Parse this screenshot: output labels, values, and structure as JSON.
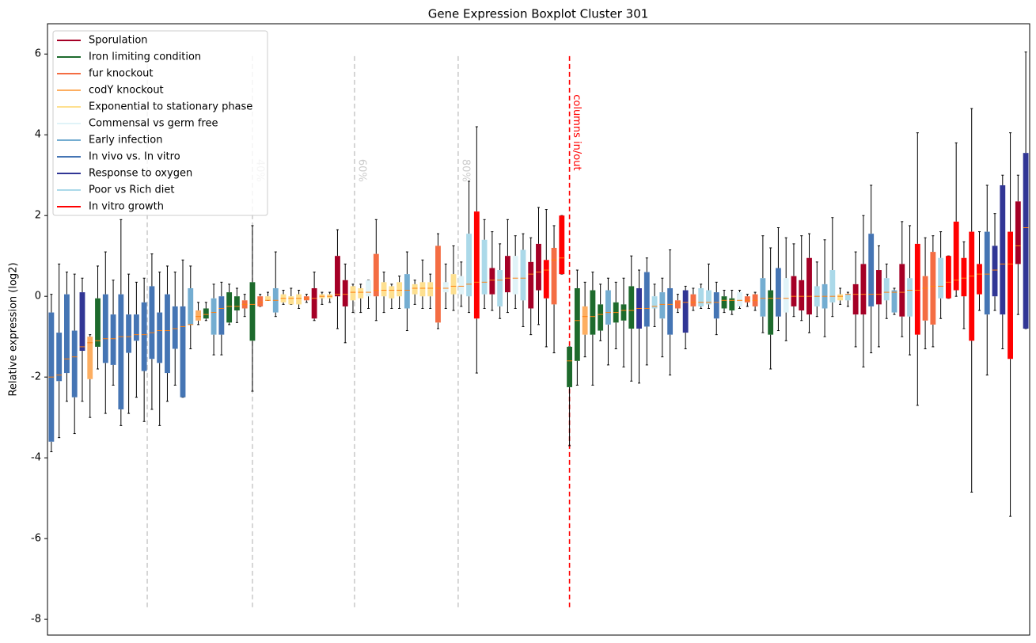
{
  "chart_data": {
    "type": "boxplot",
    "title": "Gene Expression Boxplot Cluster 301",
    "ylabel": "Relative expression (log2)",
    "xlim": [
      -0.5,
      126.5
    ],
    "ylim": [
      -8.39,
      6.75
    ],
    "yticks": [
      -8,
      -6,
      -4,
      -2,
      0,
      2,
      4,
      6
    ],
    "legend": "upper left",
    "median_color": "#ff7f0e",
    "whisker_color": "#000000",
    "vlines": [
      {
        "x": 12.4,
        "ymin": -7.7,
        "ymax": 6,
        "color": "#cccccc"
      },
      {
        "x": 26,
        "ymin": -7.7,
        "ymax": 6,
        "color": "#cccccc",
        "label": "40%"
      },
      {
        "x": 39.2,
        "ymin": -7.7,
        "ymax": 6,
        "color": "#cccccc",
        "label": "60%"
      },
      {
        "x": 52.6,
        "ymin": -7.7,
        "ymax": 6,
        "color": "#cccccc",
        "label": "80%"
      },
      {
        "x": 67,
        "ymin": -7.7,
        "ymax": 6,
        "color": "#ff0000",
        "label": "columns in/out"
      }
    ],
    "series": [
      {
        "name": "Sporulation",
        "color": "#a50026",
        "x": [
          34,
          37,
          38,
          57,
          59,
          62,
          63,
          96,
          97,
          98,
          104,
          105,
          107,
          110,
          125
        ],
        "boxes": [
          [
            -0.6,
            -0.55,
            -0.05,
            0.2,
            0.6
          ],
          [
            -0.8,
            0,
            0.05,
            1.0,
            1.65
          ],
          [
            -1.15,
            -0.25,
            0.05,
            0.4,
            0.8
          ],
          [
            -0.35,
            0.05,
            0.4,
            0.7,
            1.6
          ],
          [
            -0.4,
            0.1,
            0.45,
            1.0,
            1.9
          ],
          [
            -0.95,
            -0.3,
            0.55,
            0.85,
            1.45
          ],
          [
            -0.7,
            0.15,
            0.6,
            1.3,
            2.2
          ],
          [
            -0.5,
            -0.25,
            0,
            0.5,
            1.3
          ],
          [
            -0.6,
            -0.35,
            0,
            0.4,
            1.5
          ],
          [
            -0.9,
            -0.45,
            0,
            0.95,
            1.55
          ],
          [
            -1.25,
            -0.45,
            0.05,
            0.3,
            1.1
          ],
          [
            -1.75,
            -0.45,
            0.05,
            0.8,
            2.0
          ],
          [
            -1.25,
            -0.2,
            0.05,
            0.65,
            1.25
          ],
          [
            -1.0,
            -0.5,
            0.1,
            0.8,
            1.85
          ],
          [
            -0.45,
            0.8,
            1.25,
            2.35,
            3.0
          ]
        ]
      },
      {
        "name": "Iron limiting condition",
        "color": "#1d6a2c",
        "x": [
          6,
          20,
          23,
          24,
          26,
          67,
          68,
          70,
          71,
          73,
          74,
          75,
          87,
          88,
          93
        ],
        "boxes": [
          [
            -1.8,
            -1.25,
            -1.1,
            -0.05,
            0.75
          ],
          [
            -0.6,
            -0.55,
            -0.45,
            -0.3,
            -0.15
          ],
          [
            -0.7,
            -0.65,
            -0.25,
            0.1,
            0.3
          ],
          [
            -0.65,
            -0.35,
            -0.25,
            0,
            0.2
          ],
          [
            -2.35,
            -1.1,
            -0.2,
            0.35,
            1.75
          ],
          [
            -3.7,
            -2.25,
            -1.6,
            -1.25,
            -1.25
          ],
          [
            -2.2,
            -1.6,
            -0.6,
            0.2,
            0.65
          ],
          [
            -2.2,
            -0.95,
            -0.5,
            0.15,
            0.6
          ],
          [
            -1.1,
            -0.85,
            -0.45,
            -0.2,
            0.3
          ],
          [
            -1.3,
            -0.65,
            -0.4,
            -0.15,
            0.35
          ],
          [
            -1.75,
            -0.6,
            -0.35,
            -0.2,
            0.45
          ],
          [
            -2.1,
            -0.8,
            -0.35,
            0.25,
            1.0
          ],
          [
            -0.4,
            -0.3,
            -0.1,
            0,
            0.15
          ],
          [
            -0.45,
            -0.35,
            -0.1,
            -0.05,
            0.15
          ],
          [
            -1.8,
            -0.95,
            -0.05,
            0.15,
            1.2
          ]
        ]
      },
      {
        "name": "fur knockout",
        "color": "#f46d43",
        "x": [
          25,
          27,
          33,
          42,
          50,
          65,
          81,
          83,
          90,
          91,
          113,
          114
        ],
        "boxes": [
          [
            -0.5,
            -0.3,
            -0.2,
            -0.1,
            0.05
          ],
          [
            -0.25,
            -0.25,
            -0.15,
            0,
            0.05
          ],
          [
            -0.15,
            -0.1,
            -0.05,
            0,
            0.05
          ],
          [
            -0.6,
            0,
            0.15,
            1.05,
            1.9
          ],
          [
            -0.8,
            -0.65,
            0.2,
            1.25,
            1.55
          ],
          [
            -1.4,
            -0.2,
            0.9,
            1.2,
            1.75
          ],
          [
            -0.4,
            -0.3,
            -0.15,
            -0.1,
            0.05
          ],
          [
            -0.35,
            -0.25,
            -0.15,
            0.05,
            0.2
          ],
          [
            -0.25,
            -0.15,
            -0.1,
            0,
            0.05
          ],
          [
            -0.35,
            -0.25,
            -0.1,
            0.05,
            0.1
          ],
          [
            -1.3,
            -0.6,
            0.2,
            0.5,
            1.45
          ],
          [
            -1.25,
            -0.7,
            0.25,
            1.1,
            1.5
          ]
        ]
      },
      {
        "name": "codY knockout",
        "color": "#fdae61",
        "x": [
          5,
          19,
          69
        ],
        "boxes": [
          [
            -3.0,
            -2.05,
            -1.15,
            -1.0,
            -0.95
          ],
          [
            -0.7,
            -0.6,
            -0.5,
            -0.35,
            -0.15
          ],
          [
            -1.5,
            -0.95,
            -0.5,
            -0.25,
            0.35
          ]
        ]
      },
      {
        "name": "Exponential to stationary phase",
        "color": "#fee090",
        "x": [
          28,
          30,
          31,
          32,
          35,
          36,
          39,
          40,
          43,
          44,
          45,
          47,
          48,
          49,
          52,
          102
        ],
        "boxes": [
          [
            -0.1,
            -0.1,
            -0.1,
            0,
            0.1
          ],
          [
            -0.2,
            -0.15,
            -0.05,
            0.05,
            0.15
          ],
          [
            -0.2,
            -0.2,
            -0.05,
            0,
            0.2
          ],
          [
            -0.3,
            -0.2,
            -0.05,
            0.05,
            0.15
          ],
          [
            -0.2,
            -0.05,
            0,
            0.05,
            0.1
          ],
          [
            -0.15,
            -0.05,
            0,
            0.05,
            0.1
          ],
          [
            -0.4,
            -0.1,
            0.1,
            0.25,
            0.3
          ],
          [
            -0.4,
            -0.05,
            0.1,
            0.2,
            0.3
          ],
          [
            -0.4,
            0,
            0.15,
            0.35,
            0.6
          ],
          [
            -0.3,
            -0.05,
            0.15,
            0.25,
            0.3
          ],
          [
            -0.3,
            0,
            0.15,
            0.35,
            0.5
          ],
          [
            -0.2,
            0.05,
            0.2,
            0.3,
            0.4
          ],
          [
            -0.3,
            0,
            0.2,
            0.35,
            0.9
          ],
          [
            -0.3,
            0,
            0.2,
            0.35,
            0.55
          ],
          [
            -0.35,
            0.05,
            0.25,
            0.55,
            1.25
          ],
          [
            -0.2,
            -0.1,
            0,
            0.05,
            0.2
          ]
        ]
      },
      {
        "name": "Commensal vs germ free",
        "color": "#e0f3f8",
        "x": [
          41,
          51,
          53,
          60,
          89,
          95
        ],
        "boxes": [
          [
            -0.3,
            0,
            0.1,
            0.4,
            0.4
          ],
          [
            -0.3,
            0.1,
            0.2,
            0.35,
            0.8
          ],
          [
            -0.25,
            0.05,
            0.25,
            0.5,
            0.85
          ],
          [
            -0.3,
            0.05,
            0.45,
            1.0,
            1.5
          ],
          [
            -0.3,
            -0.25,
            -0.1,
            0.1,
            0.15
          ],
          [
            -1.1,
            -0.4,
            -0.05,
            0.45,
            1.45
          ]
        ]
      },
      {
        "name": "Early infection",
        "color": "#74add1",
        "x": [
          18,
          21,
          29,
          46,
          72,
          79,
          92,
          100,
          109
        ],
        "boxes": [
          [
            -1.3,
            -0.7,
            -0.7,
            0.2,
            0.75
          ],
          [
            -1.45,
            -0.95,
            -0.4,
            -0.05,
            0.3
          ],
          [
            -0.5,
            -0.4,
            -0.1,
            0.2,
            1.1
          ],
          [
            -0.85,
            -0.3,
            0.15,
            0.55,
            1.1
          ],
          [
            -1.7,
            -0.7,
            -0.4,
            0.15,
            0.45
          ],
          [
            -1.5,
            -0.55,
            -0.2,
            0.1,
            0.45
          ],
          [
            -0.9,
            -0.5,
            -0.05,
            0.45,
            1.5
          ],
          [
            -1.0,
            -0.3,
            0,
            0.3,
            1.4
          ],
          [
            -0.45,
            -0.4,
            0.1,
            0.15,
            0.2
          ]
        ]
      },
      {
        "name": "In vivo vs. In vitro",
        "color": "#4575b4",
        "x": [
          0,
          1,
          2,
          3,
          7,
          8,
          9,
          10,
          11,
          12,
          13,
          14,
          15,
          16,
          17,
          22,
          77,
          80,
          86,
          94,
          106,
          121
        ],
        "boxes": [
          [
            -3.85,
            -3.6,
            -2.0,
            -0.4,
            0.05
          ],
          [
            -3.5,
            -2.1,
            -1.95,
            -0.9,
            0.8
          ],
          [
            -2.6,
            -1.9,
            -1.55,
            0.05,
            0.6
          ],
          [
            -3.4,
            -2.5,
            -1.5,
            -0.85,
            0.55
          ],
          [
            -2.9,
            -1.65,
            -1.05,
            0.05,
            1.1
          ],
          [
            -2.2,
            -1.7,
            -1.05,
            -0.45,
            0.4
          ],
          [
            -3.2,
            -2.8,
            -1.0,
            0.05,
            1.9
          ],
          [
            -2.9,
            -1.4,
            -1.0,
            -0.45,
            0.55
          ],
          [
            -2.5,
            -1.1,
            -0.95,
            -0.45,
            0.35
          ],
          [
            -3.1,
            -1.85,
            -0.95,
            -0.15,
            0.45
          ],
          [
            -2.8,
            -1.55,
            -0.9,
            0.25,
            1.05
          ],
          [
            -3.2,
            -1.65,
            -0.85,
            -0.4,
            0.6
          ],
          [
            -2.6,
            -1.9,
            -0.85,
            0.05,
            0.75
          ],
          [
            -2.2,
            -1.3,
            -0.8,
            -0.25,
            0.6
          ],
          [
            -2.5,
            -2.5,
            -0.75,
            -0.25,
            0.9
          ],
          [
            -1.45,
            -0.95,
            -0.3,
            0,
            0.35
          ],
          [
            -1.7,
            -0.75,
            -0.3,
            0.6,
            0.95
          ],
          [
            -1.95,
            -0.95,
            -0.2,
            0.2,
            1.15
          ],
          [
            -0.95,
            -0.55,
            -0.15,
            0.1,
            0.35
          ],
          [
            -0.85,
            -0.5,
            -0.05,
            0.7,
            1.7
          ],
          [
            -1.4,
            -0.25,
            0.05,
            1.55,
            2.75
          ],
          [
            -1.95,
            -0.45,
            0.55,
            1.6,
            2.75
          ]
        ]
      },
      {
        "name": "Response to oxygen",
        "color": "#313695",
        "x": [
          4,
          76,
          82,
          122,
          123,
          126
        ],
        "boxes": [
          [
            -2.6,
            -1.35,
            -1.25,
            0.1,
            0.45
          ],
          [
            -2.15,
            -0.8,
            -0.3,
            0.2,
            0.65
          ],
          [
            -1.3,
            -0.9,
            -0.15,
            0.15,
            0.25
          ],
          [
            -0.35,
            0,
            0.65,
            1.25,
            2.05
          ],
          [
            -1.3,
            -0.45,
            0.8,
            2.75,
            3.0
          ],
          [
            -0.8,
            -0.8,
            1.7,
            3.55,
            6.05
          ]
        ]
      },
      {
        "name": "Poor vs Rich diet",
        "color": "#abd9e9",
        "x": [
          54,
          56,
          58,
          61,
          78,
          84,
          85,
          99,
          101,
          103,
          108,
          111,
          115
        ],
        "boxes": [
          [
            -0.4,
            0,
            0.3,
            1.55,
            2.85
          ],
          [
            -0.3,
            0.05,
            0.35,
            1.4,
            1.9
          ],
          [
            -0.55,
            -0.25,
            0.4,
            0.65,
            1.3
          ],
          [
            -0.75,
            -0.1,
            0.45,
            1.15,
            1.55
          ],
          [
            -0.75,
            -0.3,
            -0.25,
            0,
            0.3
          ],
          [
            -0.3,
            -0.25,
            -0.15,
            0.2,
            0.3
          ],
          [
            -0.3,
            -0.2,
            -0.15,
            0.15,
            0.8
          ],
          [
            -0.5,
            -0.25,
            0,
            0.25,
            0.85
          ],
          [
            -0.5,
            -0.15,
            0,
            0.65,
            1.95
          ],
          [
            -0.25,
            -0.1,
            0.05,
            0.05,
            0.1
          ],
          [
            -0.55,
            -0.1,
            0.1,
            0.45,
            0.8
          ],
          [
            -1.45,
            -0.5,
            0.15,
            0.45,
            1.75
          ],
          [
            -0.55,
            -0.05,
            0.25,
            0.95,
            1.6
          ]
        ]
      },
      {
        "name": "In vitro growth",
        "color": "#ff0000",
        "x": [
          55,
          64,
          66,
          112,
          116,
          117,
          118,
          119,
          120,
          124
        ],
        "boxes": [
          [
            -1.9,
            -0.55,
            0.35,
            2.1,
            4.2
          ],
          [
            -1.25,
            -0.05,
            0.65,
            0.9,
            2.15
          ],
          [
            0.55,
            0.55,
            0.95,
            2.0,
            2.0
          ],
          [
            -2.7,
            -0.95,
            0.15,
            1.3,
            4.05
          ],
          [
            -0.05,
            -0.05,
            0.35,
            1.0,
            1.0
          ],
          [
            0,
            0.15,
            0.4,
            1.85,
            3.8
          ],
          [
            -0.8,
            0,
            0.45,
            0.95,
            1.35
          ],
          [
            -4.85,
            -1.1,
            0.5,
            1.6,
            4.65
          ],
          [
            -0.35,
            0.05,
            0.55,
            0.8,
            1.6
          ],
          [
            -5.45,
            -1.55,
            0.8,
            1.6,
            4.05
          ]
        ]
      }
    ]
  }
}
